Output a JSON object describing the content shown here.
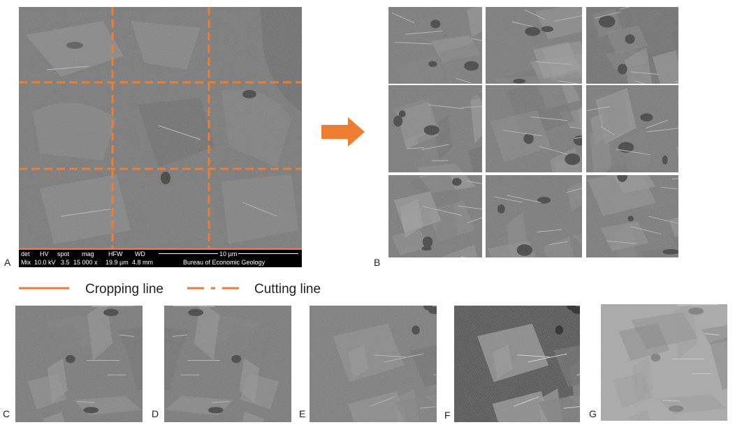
{
  "panels": {
    "A": "A",
    "B": "B",
    "C": "C",
    "D": "D",
    "E": "E",
    "F": "F",
    "G": "G"
  },
  "legend": {
    "cropping": "Cropping line",
    "cutting": "Cutting line"
  },
  "databar": {
    "h_det": "det",
    "h_hv": "HV",
    "h_spot": "spot",
    "h_mag": "mag",
    "h_hfw": "HFW",
    "h_wd": "WD",
    "scale": "10 µm",
    "v_det": "Mix",
    "v_hv": "10.0 kV",
    "v_spot": "3.5",
    "v_mag": "15 000 x",
    "v_hfw": "19.9 µm",
    "v_wd": "4.8 mm",
    "institution": "Bureau of Economic Geology"
  },
  "colors": {
    "accent_orange": "#ED7D31",
    "sem_gray": "#7a7a7a"
  },
  "icons": {
    "arrow": "right-arrow-icon"
  }
}
